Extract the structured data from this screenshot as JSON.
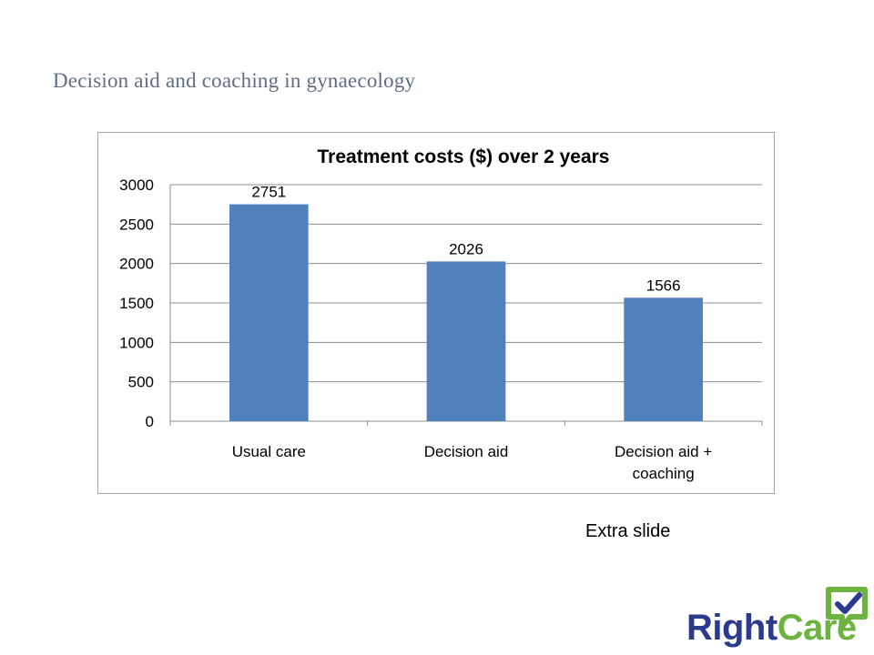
{
  "slide": {
    "title": "Decision aid and coaching in gynaecology",
    "note": "Extra slide"
  },
  "brand": {
    "logo_part1": "Right",
    "logo_part2": "Care",
    "colors": {
      "right": "#2b3a8c",
      "care": "#6db33f"
    }
  },
  "colors": {
    "bar": "#4f81bd",
    "gridline": "#8c8c8c",
    "title_text": "#5f6f80"
  },
  "chart_data": {
    "type": "bar",
    "title": "Treatment costs ($) over 2 years",
    "categories": [
      [
        "Usual care"
      ],
      [
        "Decision aid"
      ],
      [
        "Decision aid +",
        "coaching"
      ]
    ],
    "values": [
      2751,
      2026,
      1566
    ],
    "data_labels": [
      "2751",
      "2026",
      "1566"
    ],
    "ylim": [
      0,
      3000
    ],
    "yticks": [
      0,
      500,
      1000,
      1500,
      2000,
      2500,
      3000
    ],
    "grid": true,
    "legend": "none",
    "xlabel": "",
    "ylabel": ""
  }
}
